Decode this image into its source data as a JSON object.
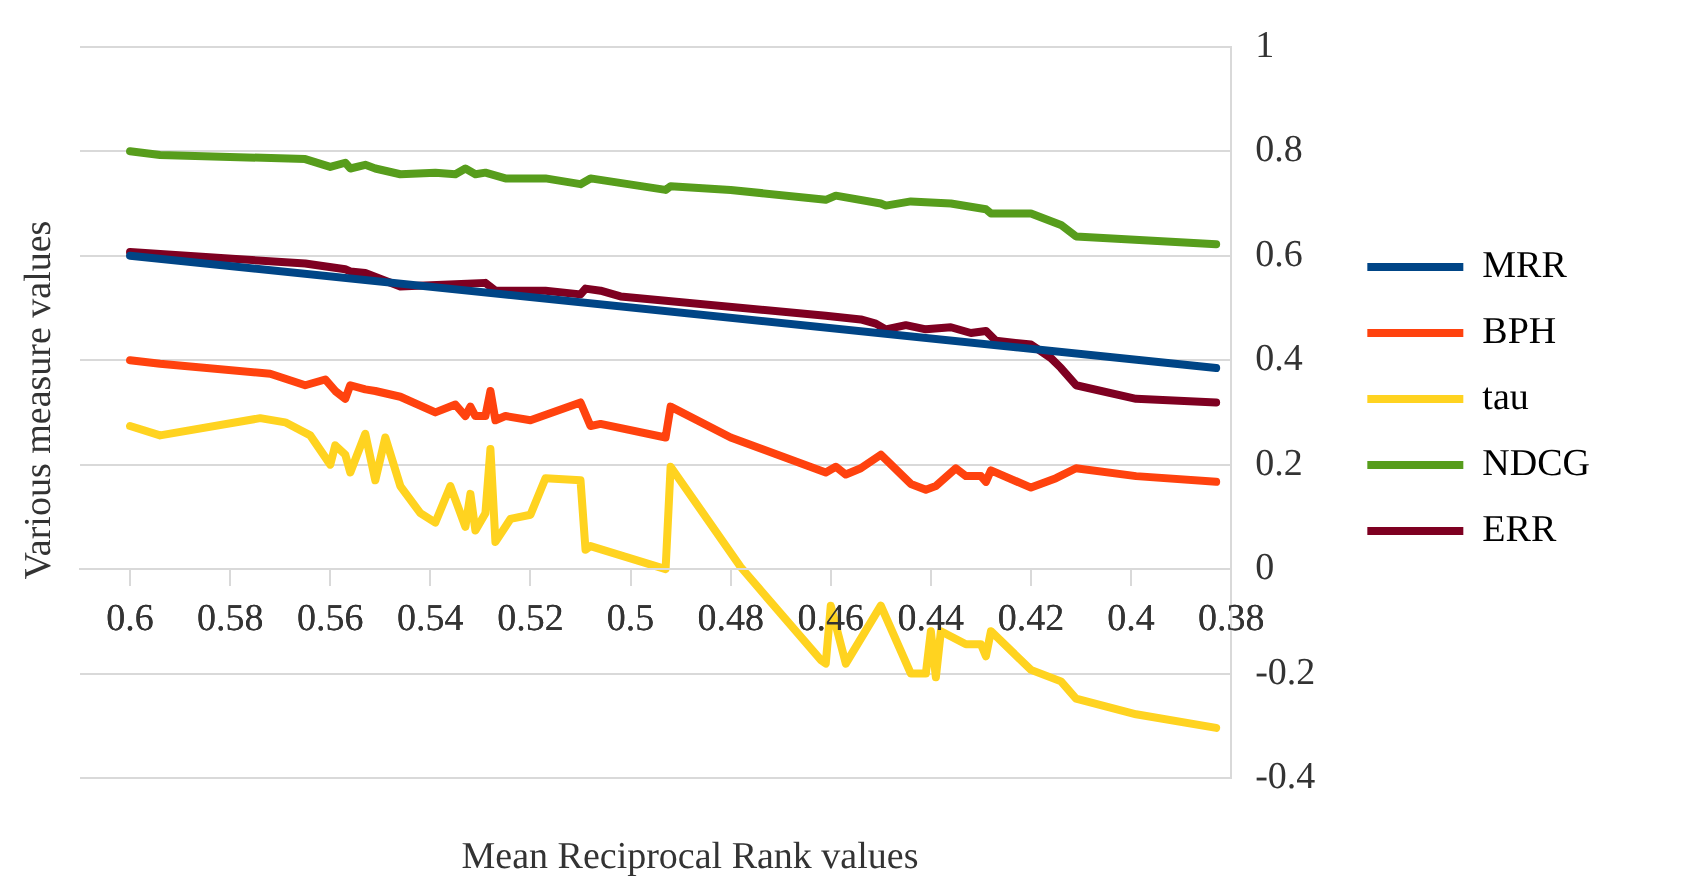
{
  "chart_data": {
    "type": "line",
    "xlabel": "Mean Reciprocal Rank values",
    "ylabel": "Various measure values",
    "xlim": [
      0.61,
      0.38
    ],
    "xticks": [
      0.6,
      0.58,
      0.56,
      0.54,
      0.52,
      0.5,
      0.48,
      0.46,
      0.44,
      0.42,
      0.4,
      0.38
    ],
    "ylim": [
      -0.4,
      1
    ],
    "yticks": [
      -0.4,
      -0.2,
      0,
      0.2,
      0.4,
      0.6,
      0.8,
      1
    ],
    "grid": "y",
    "legend": "right",
    "marker": "none",
    "line_style": "solid",
    "series": [
      {
        "name": "MRR",
        "color": "#004586",
        "x": [
          0.6,
          0.383
        ],
        "values": [
          0.6,
          0.385
        ]
      },
      {
        "name": "BPH",
        "color": "#ff420e",
        "x": [
          0.6,
          0.594,
          0.572,
          0.565,
          0.561,
          0.559,
          0.557,
          0.556,
          0.553,
          0.551,
          0.546,
          0.539,
          0.535,
          0.533,
          0.532,
          0.531,
          0.529,
          0.528,
          0.527,
          0.525,
          0.52,
          0.51,
          0.508,
          0.506,
          0.493,
          0.492,
          0.48,
          0.461,
          0.459,
          0.457,
          0.454,
          0.45,
          0.444,
          0.441,
          0.439,
          0.435,
          0.433,
          0.43,
          0.429,
          0.428,
          0.42,
          0.415,
          0.411,
          0.399,
          0.383
        ],
        "values": [
          0.4,
          0.393,
          0.374,
          0.352,
          0.363,
          0.341,
          0.326,
          0.352,
          0.344,
          0.341,
          0.33,
          0.3,
          0.315,
          0.293,
          0.311,
          0.293,
          0.293,
          0.341,
          0.285,
          0.293,
          0.285,
          0.319,
          0.274,
          0.278,
          0.252,
          0.311,
          0.252,
          0.185,
          0.196,
          0.181,
          0.193,
          0.219,
          0.163,
          0.152,
          0.159,
          0.193,
          0.178,
          0.178,
          0.167,
          0.189,
          0.156,
          0.174,
          0.193,
          0.178,
          0.167
        ]
      },
      {
        "name": "tau",
        "color": "#ffd320",
        "x": [
          0.6,
          0.594,
          0.574,
          0.569,
          0.564,
          0.56,
          0.559,
          0.557,
          0.556,
          0.553,
          0.551,
          0.549,
          0.546,
          0.542,
          0.539,
          0.536,
          0.533,
          0.532,
          0.531,
          0.529,
          0.528,
          0.527,
          0.524,
          0.52,
          0.517,
          0.51,
          0.509,
          0.508,
          0.493,
          0.492,
          0.478,
          0.462,
          0.461,
          0.46,
          0.457,
          0.45,
          0.444,
          0.441,
          0.44,
          0.439,
          0.438,
          0.433,
          0.43,
          0.429,
          0.428,
          0.42,
          0.414,
          0.411,
          0.399,
          0.383
        ],
        "values": [
          0.274,
          0.256,
          0.289,
          0.281,
          0.256,
          0.2,
          0.237,
          0.219,
          0.185,
          0.259,
          0.17,
          0.252,
          0.159,
          0.107,
          0.089,
          0.159,
          0.081,
          0.144,
          0.074,
          0.107,
          0.23,
          0.052,
          0.096,
          0.104,
          0.174,
          0.17,
          0.037,
          0.044,
          0.0,
          0.196,
          0.004,
          -0.174,
          -0.181,
          -0.07,
          -0.181,
          -0.07,
          -0.2,
          -0.2,
          -0.119,
          -0.207,
          -0.119,
          -0.144,
          -0.144,
          -0.167,
          -0.119,
          -0.193,
          -0.215,
          -0.248,
          -0.278,
          -0.304
        ]
      },
      {
        "name": "NDCG",
        "color": "#579d1c",
        "x": [
          0.6,
          0.594,
          0.565,
          0.56,
          0.557,
          0.556,
          0.553,
          0.551,
          0.546,
          0.539,
          0.535,
          0.533,
          0.531,
          0.529,
          0.525,
          0.517,
          0.51,
          0.508,
          0.493,
          0.492,
          0.48,
          0.461,
          0.459,
          0.45,
          0.449,
          0.444,
          0.436,
          0.429,
          0.428,
          0.42,
          0.414,
          0.411,
          0.383
        ],
        "values": [
          0.8,
          0.793,
          0.785,
          0.77,
          0.778,
          0.767,
          0.774,
          0.767,
          0.756,
          0.759,
          0.756,
          0.767,
          0.756,
          0.759,
          0.748,
          0.748,
          0.737,
          0.748,
          0.726,
          0.733,
          0.726,
          0.707,
          0.715,
          0.7,
          0.696,
          0.704,
          0.7,
          0.689,
          0.681,
          0.681,
          0.659,
          0.637,
          0.622
        ]
      },
      {
        "name": "ERR",
        "color": "#7e0021",
        "x": [
          0.6,
          0.565,
          0.557,
          0.556,
          0.553,
          0.546,
          0.529,
          0.527,
          0.517,
          0.51,
          0.509,
          0.506,
          0.502,
          0.461,
          0.454,
          0.451,
          0.449,
          0.445,
          0.441,
          0.436,
          0.432,
          0.429,
          0.427,
          0.42,
          0.416,
          0.414,
          0.411,
          0.399,
          0.383
        ],
        "values": [
          0.607,
          0.585,
          0.574,
          0.57,
          0.567,
          0.541,
          0.548,
          0.533,
          0.533,
          0.526,
          0.537,
          0.533,
          0.522,
          0.485,
          0.478,
          0.47,
          0.459,
          0.467,
          0.459,
          0.463,
          0.452,
          0.456,
          0.437,
          0.43,
          0.404,
          0.385,
          0.352,
          0.326,
          0.319
        ]
      }
    ]
  }
}
